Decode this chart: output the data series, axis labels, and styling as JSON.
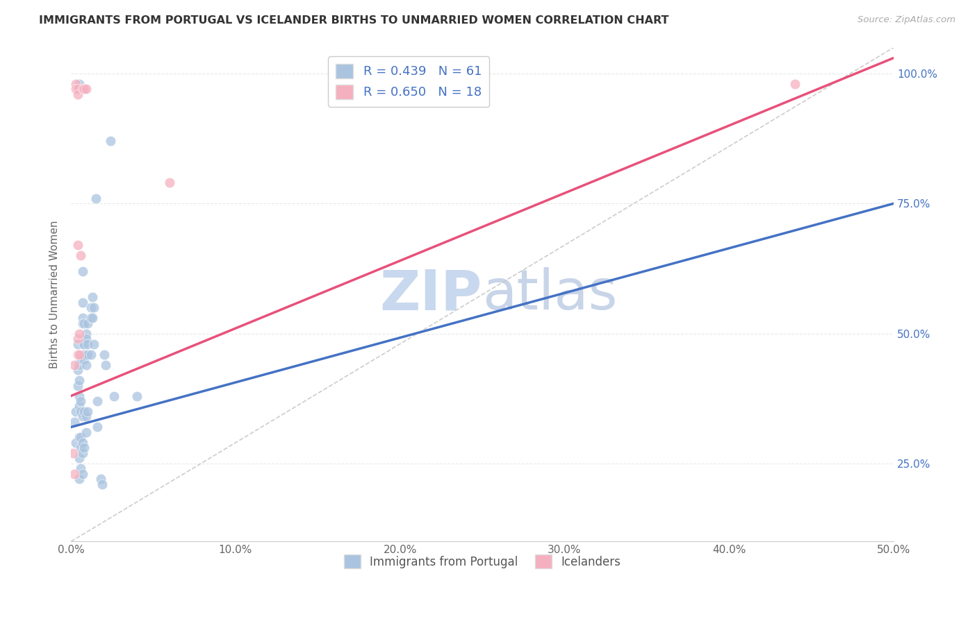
{
  "title": "IMMIGRANTS FROM PORTUGAL VS ICELANDER BIRTHS TO UNMARRIED WOMEN CORRELATION CHART",
  "source": "Source: ZipAtlas.com",
  "ylabel": "Births to Unmarried Women",
  "xlim": [
    0.0,
    50.0
  ],
  "ylim": [
    10.0,
    105.0
  ],
  "xtick_labels": [
    "0.0%",
    "10.0%",
    "20.0%",
    "30.0%",
    "40.0%",
    "50.0%"
  ],
  "xtick_vals": [
    0.0,
    10.0,
    20.0,
    30.0,
    40.0,
    50.0
  ],
  "ytick_labels": [
    "25.0%",
    "50.0%",
    "75.0%",
    "100.0%"
  ],
  "ytick_vals": [
    25.0,
    50.0,
    75.0,
    100.0
  ],
  "R_blue": 0.439,
  "N_blue": 61,
  "R_pink": 0.65,
  "N_pink": 18,
  "blue_color": "#aac4e0",
  "pink_color": "#f5b0c0",
  "blue_line_color": "#4472c4",
  "pink_line_color": "#e8507a",
  "legend_text_color": "#4472c4",
  "title_color": "#333333",
  "watermark_color_zip": "#c8d8ee",
  "watermark_color_atlas": "#c8d4e8",
  "source_color": "#aaaaaa",
  "grid_color": "#e8e8e8",
  "blue_scatter": [
    [
      0.2,
      33.0
    ],
    [
      0.3,
      35.0
    ],
    [
      0.3,
      29.0
    ],
    [
      0.4,
      40.0
    ],
    [
      0.4,
      43.0
    ],
    [
      0.4,
      48.0
    ],
    [
      0.5,
      38.0
    ],
    [
      0.5,
      36.0
    ],
    [
      0.5,
      41.0
    ],
    [
      0.5,
      30.0
    ],
    [
      0.5,
      26.0
    ],
    [
      0.5,
      22.0
    ],
    [
      0.5,
      44.0
    ],
    [
      0.6,
      45.0
    ],
    [
      0.6,
      37.0
    ],
    [
      0.6,
      35.0
    ],
    [
      0.6,
      30.0
    ],
    [
      0.6,
      28.0
    ],
    [
      0.6,
      24.0
    ],
    [
      0.7,
      62.0
    ],
    [
      0.7,
      56.0
    ],
    [
      0.7,
      53.0
    ],
    [
      0.7,
      52.0
    ],
    [
      0.7,
      48.0
    ],
    [
      0.7,
      34.0
    ],
    [
      0.7,
      29.0
    ],
    [
      0.7,
      27.0
    ],
    [
      0.7,
      23.0
    ],
    [
      0.8,
      52.0
    ],
    [
      0.8,
      48.0
    ],
    [
      0.8,
      46.0
    ],
    [
      0.8,
      45.0
    ],
    [
      0.8,
      35.0
    ],
    [
      0.8,
      28.0
    ],
    [
      0.9,
      50.0
    ],
    [
      0.9,
      49.0
    ],
    [
      0.9,
      44.0
    ],
    [
      0.9,
      34.0
    ],
    [
      0.9,
      31.0
    ],
    [
      1.0,
      52.0
    ],
    [
      1.0,
      48.0
    ],
    [
      1.0,
      46.0
    ],
    [
      1.0,
      35.0
    ],
    [
      1.2,
      55.0
    ],
    [
      1.2,
      53.0
    ],
    [
      1.2,
      46.0
    ],
    [
      1.3,
      57.0
    ],
    [
      1.3,
      53.0
    ],
    [
      1.4,
      55.0
    ],
    [
      1.4,
      48.0
    ],
    [
      1.5,
      76.0
    ],
    [
      1.6,
      37.0
    ],
    [
      1.6,
      32.0
    ],
    [
      1.8,
      22.0
    ],
    [
      1.9,
      21.0
    ],
    [
      2.0,
      46.0
    ],
    [
      2.1,
      44.0
    ],
    [
      2.4,
      87.0
    ],
    [
      4.0,
      38.0
    ],
    [
      2.6,
      38.0
    ],
    [
      0.5,
      98.0
    ]
  ],
  "pink_scatter": [
    [
      0.1,
      27.0
    ],
    [
      0.2,
      23.0
    ],
    [
      0.2,
      44.0
    ],
    [
      0.3,
      98.0
    ],
    [
      0.3,
      97.0
    ],
    [
      0.4,
      97.0
    ],
    [
      0.4,
      96.0
    ],
    [
      0.4,
      67.0
    ],
    [
      0.4,
      49.0
    ],
    [
      0.4,
      46.0
    ],
    [
      0.5,
      50.0
    ],
    [
      0.5,
      46.0
    ],
    [
      0.6,
      65.0
    ],
    [
      0.7,
      97.0
    ],
    [
      0.8,
      97.0
    ],
    [
      0.9,
      97.0
    ],
    [
      6.0,
      79.0
    ],
    [
      44.0,
      98.0
    ]
  ],
  "blue_line_x": [
    0.0,
    50.0
  ],
  "blue_line_y": [
    32.0,
    75.0
  ],
  "pink_line_x": [
    0.0,
    50.0
  ],
  "pink_line_y": [
    38.0,
    103.0
  ],
  "diag_line_x": [
    0.0,
    50.0
  ],
  "diag_line_y": [
    10.0,
    105.0
  ]
}
